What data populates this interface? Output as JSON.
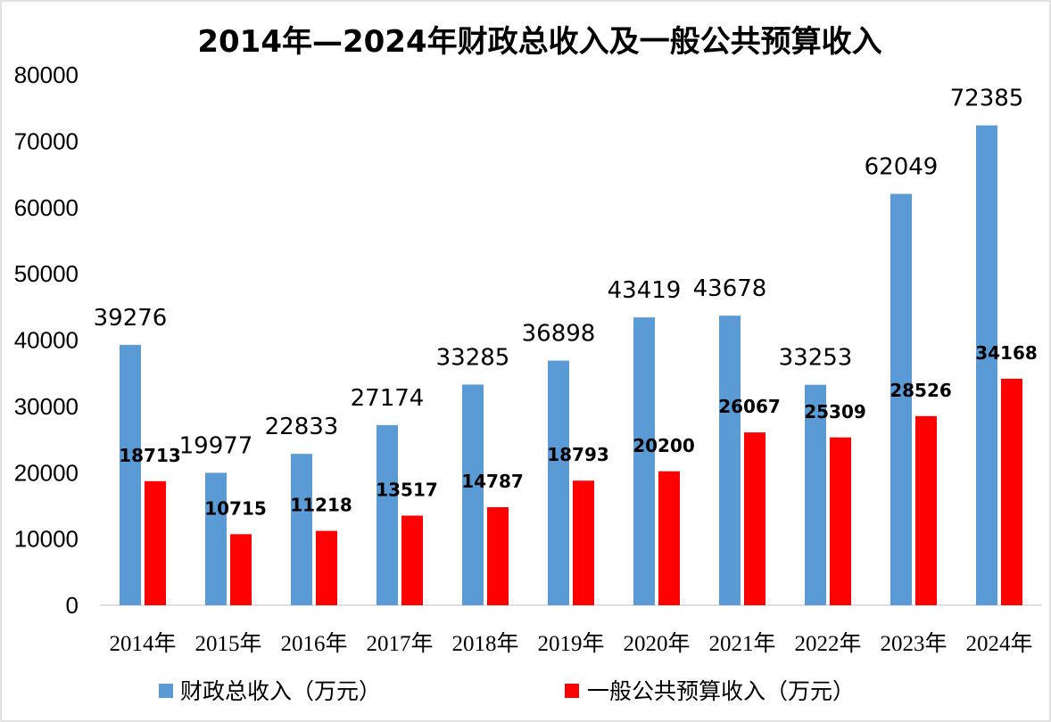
{
  "chart_data": {
    "type": "bar",
    "title": "2014年—2024年财政总收入及一般公共预算收入",
    "categories": [
      "2014年",
      "2015年",
      "2016年",
      "2017年",
      "2018年",
      "2019年",
      "2020年",
      "2021年",
      "2022年",
      "2023年",
      "2024年"
    ],
    "series": [
      {
        "name": "财政总收入（万元）",
        "color": "#5B9BD5",
        "values": [
          39276,
          19977,
          22833,
          27174,
          33285,
          36898,
          43419,
          43678,
          33253,
          62049,
          72385
        ]
      },
      {
        "name": "一般公共预算收入（万元）",
        "color": "#FF0000",
        "values": [
          18713,
          10715,
          11218,
          13517,
          14787,
          18793,
          20200,
          26067,
          25309,
          28526,
          34168
        ]
      }
    ],
    "ylim": [
      0,
      80000
    ],
    "yticks": [
      0,
      10000,
      20000,
      30000,
      40000,
      50000,
      60000,
      70000,
      80000
    ],
    "grid": false,
    "legend_position": "bottom"
  }
}
